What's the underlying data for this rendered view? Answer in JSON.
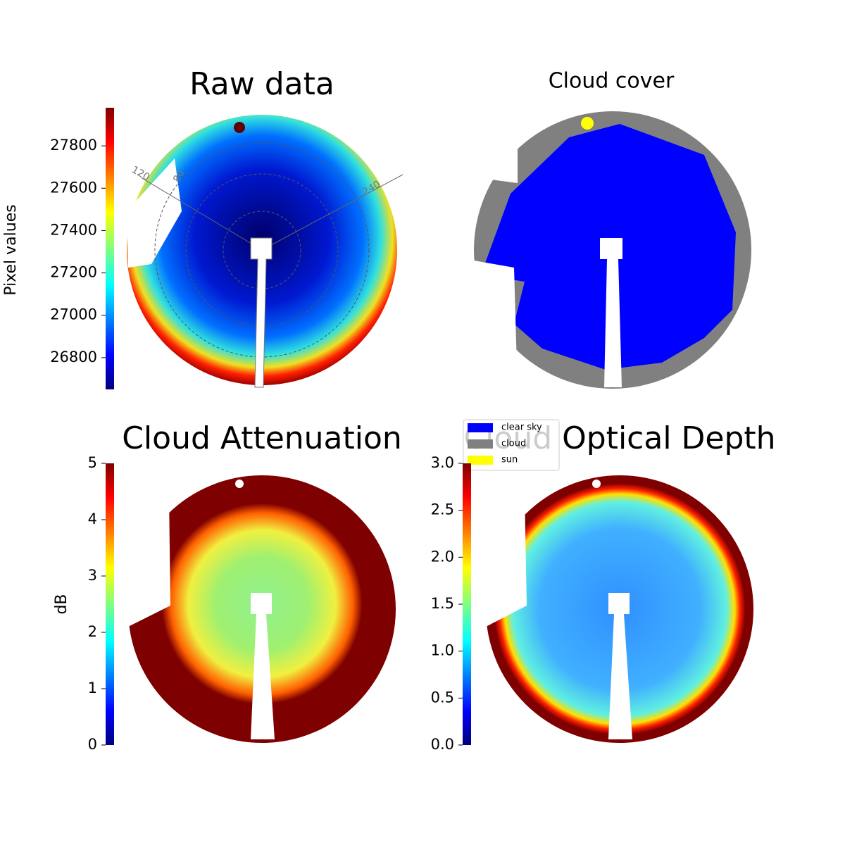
{
  "chart_data": [
    {
      "type": "image",
      "title": "Raw data",
      "colorbar_label": "Pixel values",
      "colormap": "jet",
      "ylim": [
        26650,
        27980
      ],
      "yticks": [
        26800,
        27000,
        27200,
        27400,
        27600,
        27800
      ],
      "annotations": [
        "120",
        "80",
        "240"
      ]
    },
    {
      "type": "image",
      "title": "Cloud cover",
      "legend": [
        {
          "name": "clear sky",
          "color": "#0000ff"
        },
        {
          "name": "cloud",
          "color": "#808080"
        },
        {
          "name": "sun",
          "color": "#ffff00"
        }
      ]
    },
    {
      "type": "image",
      "title": "Cloud Attenuation",
      "colorbar_label": "dB",
      "colormap": "jet",
      "ylim": [
        0,
        5
      ],
      "yticks": [
        0,
        1,
        2,
        3,
        4,
        5
      ]
    },
    {
      "type": "image",
      "title": "Cloud Optical Depth",
      "colormap": "jet",
      "ylim": [
        0,
        3
      ],
      "yticks": [
        {
          "value": 0,
          "label": "0.0"
        },
        {
          "value": 0.5,
          "label": "0.5"
        },
        {
          "value": 1,
          "label": "1.0"
        },
        {
          "value": 1.5,
          "label": "1.5"
        },
        {
          "value": 2,
          "label": "2.0"
        },
        {
          "value": 2.5,
          "label": "2.5"
        },
        {
          "value": 3,
          "label": "3.0"
        }
      ]
    }
  ]
}
